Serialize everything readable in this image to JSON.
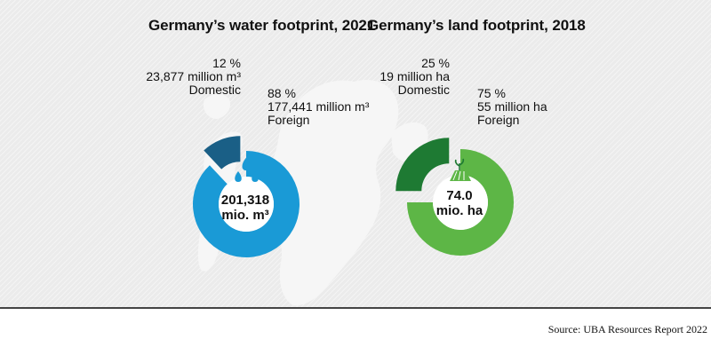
{
  "source": "Source: UBA Resources Report 2022",
  "colors": {
    "water_foreign": "#1a9ad6",
    "water_domestic": "#1a5f86",
    "land_foreign": "#5db646",
    "land_domestic": "#1e7a33",
    "background": "#ebebeb"
  },
  "chart_data": [
    {
      "type": "pie",
      "title": "Germany’s water footprint, 2021",
      "total_value": "201,318",
      "total_unit": "mio. m³",
      "icon": "water-drops-icon",
      "slices": [
        {
          "name": "Domestic",
          "percent_label": "12 %",
          "amount_label": "23,877 million m³",
          "value": 12
        },
        {
          "name": "Foreign",
          "percent_label": "88 %",
          "amount_label": "177,441 million m³",
          "value": 88
        }
      ]
    },
    {
      "type": "pie",
      "title": "Germany’s land footprint, 2018",
      "total_value": "74.0",
      "total_unit": "mio. ha",
      "icon": "farmland-icon",
      "slices": [
        {
          "name": "Domestic",
          "percent_label": "25 %",
          "amount_label": "19 million ha",
          "value": 25
        },
        {
          "name": "Foreign",
          "percent_label": "75 %",
          "amount_label": "55 million ha",
          "value": 75
        }
      ]
    }
  ]
}
